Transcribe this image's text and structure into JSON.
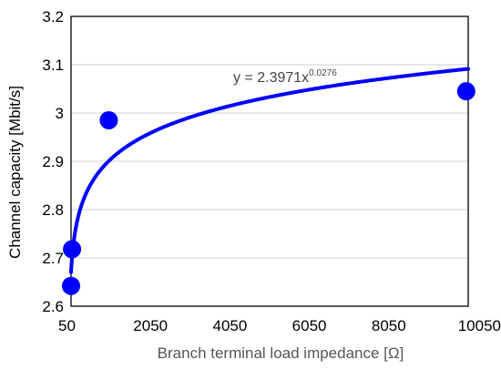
{
  "chart_data": {
    "type": "scatter",
    "xlabel": "Branch terminal load impedance [Ω]",
    "ylabel": "Channel capacity [Mbit/s]",
    "xlim": [
      50,
      10050
    ],
    "ylim": [
      2.6,
      3.2
    ],
    "x_ticks": [
      "50",
      "2050",
      "4050",
      "6050",
      "8050",
      "10050"
    ],
    "y_ticks": [
      "2.6",
      "2.7",
      "2.8",
      "2.9",
      "3",
      "3.1",
      "3.2"
    ],
    "grid": "horizontal",
    "points": [
      {
        "x": 50,
        "y": 2.642
      },
      {
        "x": 75,
        "y": 2.718
      },
      {
        "x": 1000,
        "y": 2.985
      },
      {
        "x": 10000,
        "y": 3.045
      }
    ],
    "trendline": {
      "type": "power",
      "coefficient": 2.3971,
      "exponent": 0.0276,
      "label_prefix": "y = 2.3971x",
      "label_exponent": "0.0276"
    },
    "colors": {
      "markers": "#0000ff",
      "trendline": "#0000ff"
    }
  }
}
